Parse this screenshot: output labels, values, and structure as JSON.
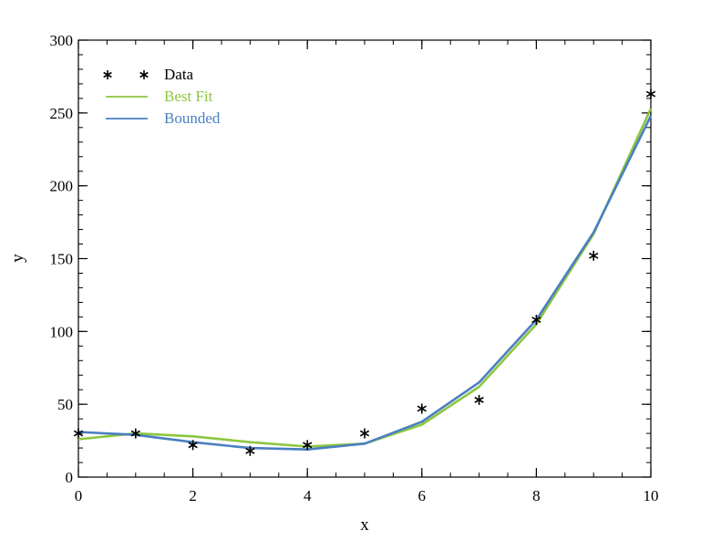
{
  "chart_data": {
    "type": "line",
    "title": "",
    "xlabel": "x",
    "ylabel": "y",
    "xlim": [
      0,
      10
    ],
    "ylim": [
      0,
      300
    ],
    "x_ticks": [
      0,
      2,
      4,
      6,
      8,
      10
    ],
    "y_ticks": [
      0,
      50,
      100,
      150,
      200,
      250,
      300
    ],
    "grid": false,
    "legend_position": "top-left",
    "series": [
      {
        "name": "Data",
        "style": "markers",
        "marker": "asterisk",
        "color": "#000000",
        "x": [
          0,
          1,
          2,
          3,
          4,
          5,
          6,
          7,
          8,
          9,
          10
        ],
        "y": [
          30,
          30,
          22,
          18,
          22,
          30,
          47,
          53,
          108,
          152,
          263
        ]
      },
      {
        "name": "Best Fit",
        "style": "line",
        "color": "#8dc63f",
        "x": [
          0,
          1,
          2,
          3,
          4,
          5,
          6,
          7,
          8,
          9,
          10
        ],
        "y": [
          26,
          30,
          28,
          24,
          21,
          23,
          36,
          62,
          105,
          167,
          253
        ]
      },
      {
        "name": "Bounded",
        "style": "line",
        "color": "#4a7fc1",
        "x": [
          0,
          1,
          2,
          3,
          4,
          5,
          6,
          7,
          8,
          9,
          10
        ],
        "y": [
          31,
          29,
          24,
          20,
          19,
          23,
          38,
          65,
          108,
          168,
          248
        ]
      }
    ]
  }
}
